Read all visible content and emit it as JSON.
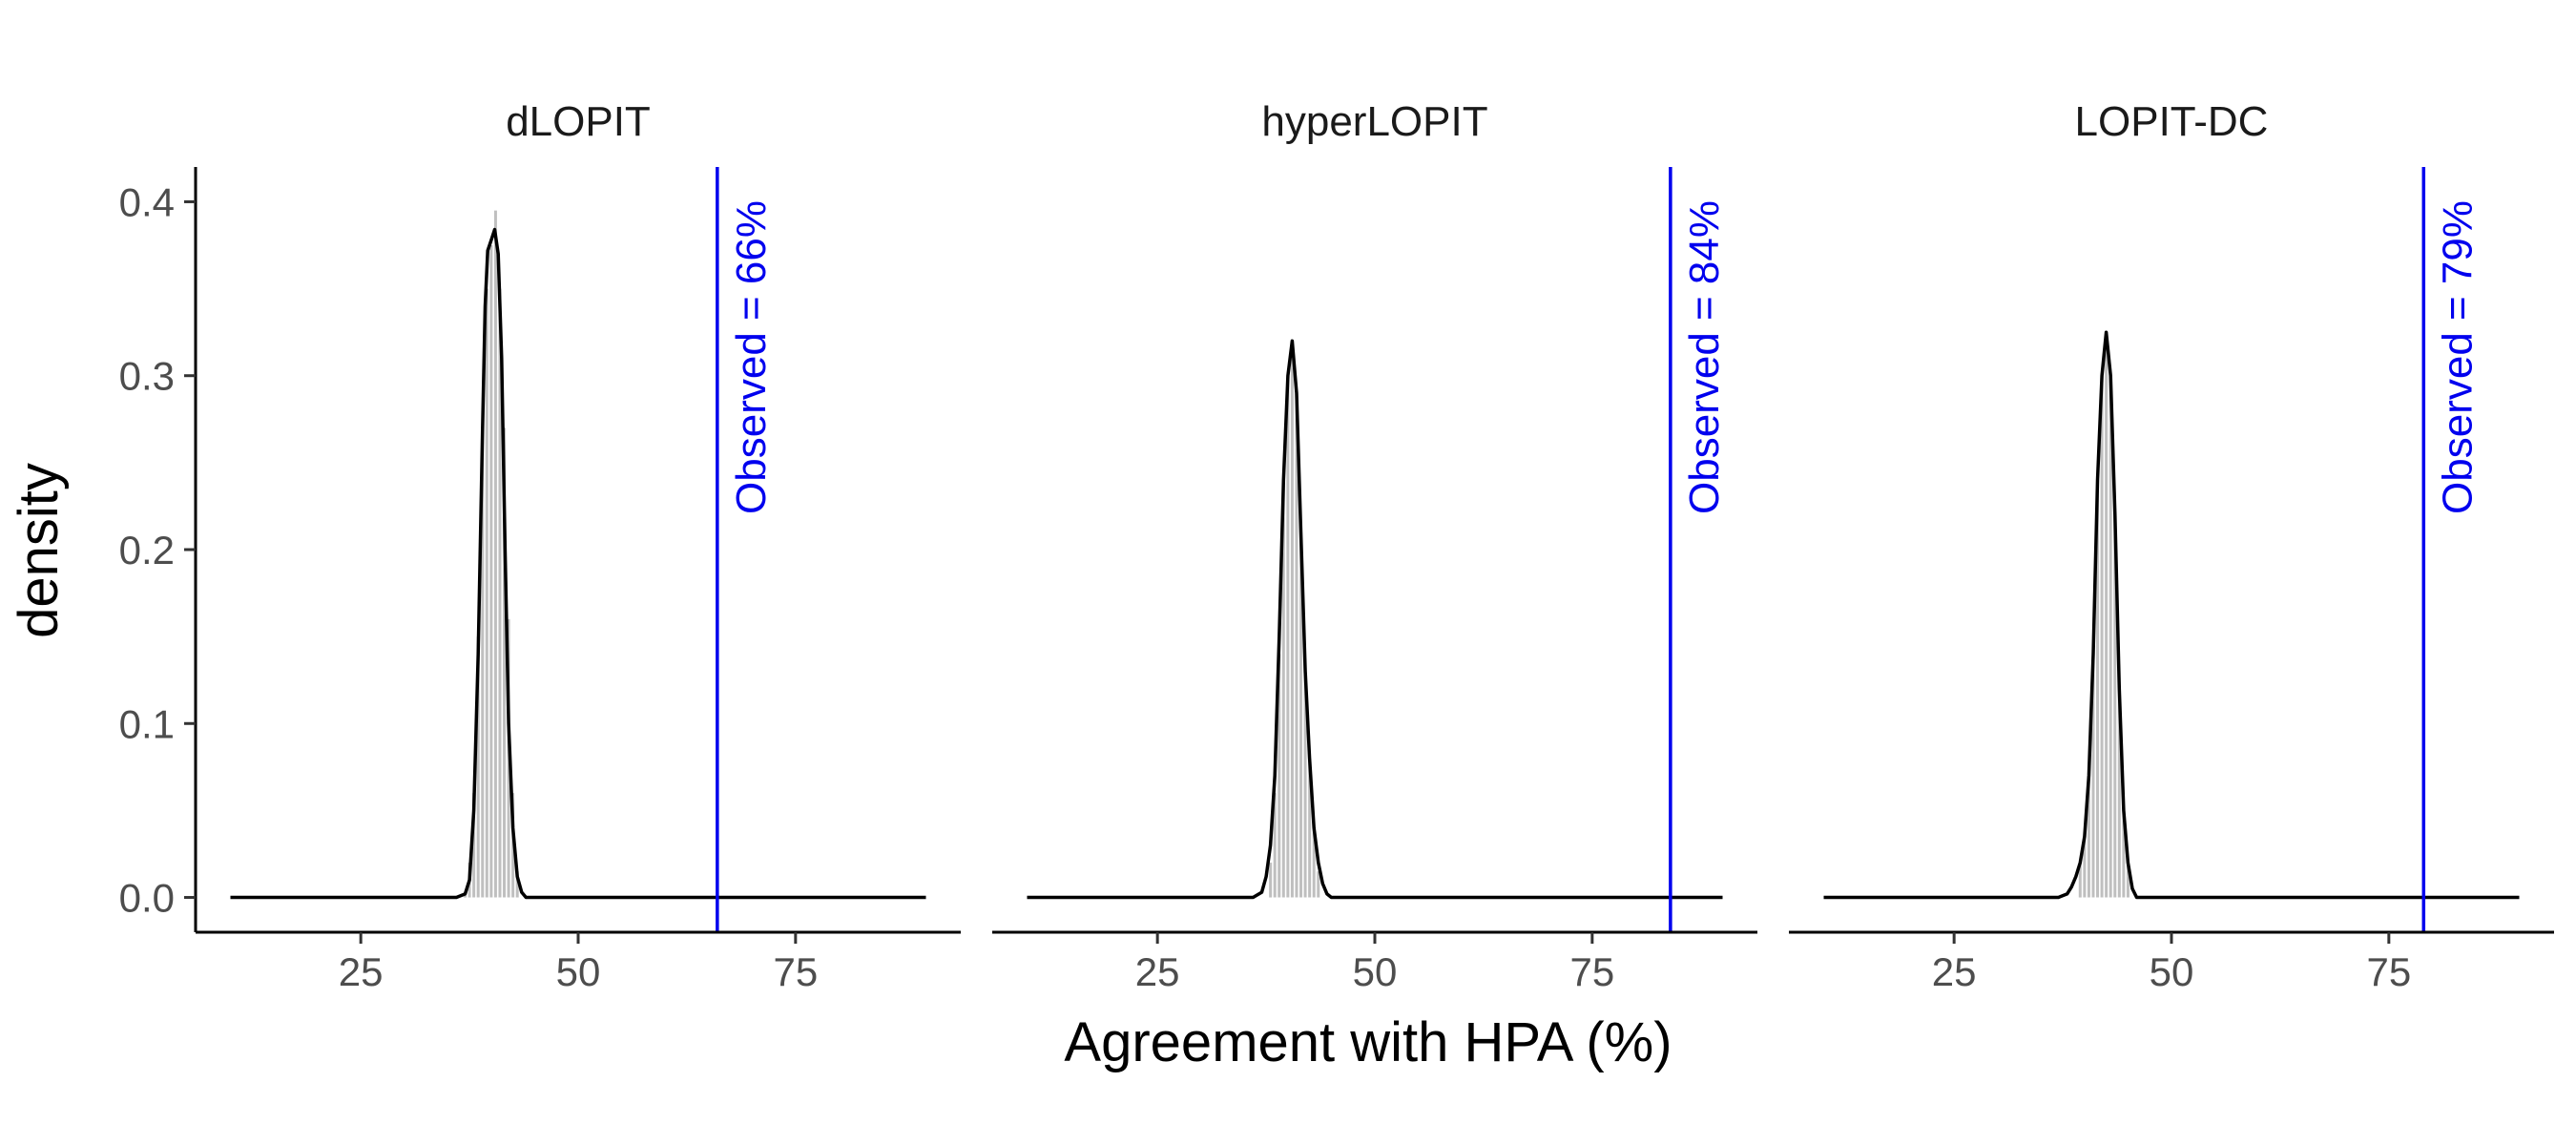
{
  "chart_data": {
    "type": "area",
    "xlabel": "Agreement with HPA (%)",
    "ylabel": "density",
    "xlim": [
      6,
      94
    ],
    "ylim": [
      -0.02,
      0.42
    ],
    "x_ticks": [
      "25",
      "50",
      "75"
    ],
    "y_ticks": [
      "0.0",
      "0.1",
      "0.2",
      "0.3",
      "0.4"
    ],
    "grid": false,
    "legend": "none",
    "colors": {
      "density_line": "#000000",
      "hist_fill": "#bfbfbf",
      "observed_line": "#0000ee"
    },
    "panels": [
      {
        "title": "dLOPIT",
        "observed_value": 66,
        "observed_label": "Observed = 66%",
        "density_x": [
          10,
          36,
          37,
          37.5,
          38,
          38.5,
          39,
          39.3,
          39.6,
          40.0,
          40.4,
          40.8,
          41.2,
          41.6,
          42.0,
          42.5,
          43,
          43.5,
          44,
          90
        ],
        "density_y": [
          0,
          0,
          0.002,
          0.01,
          0.05,
          0.14,
          0.27,
          0.34,
          0.372,
          0.378,
          0.384,
          0.37,
          0.31,
          0.2,
          0.1,
          0.04,
          0.012,
          0.003,
          0,
          0
        ],
        "hist_x": [
          37,
          37.5,
          38,
          38.5,
          39,
          39.5,
          40,
          40.5,
          41,
          41.5,
          42,
          42.5,
          43
        ],
        "hist_y": [
          0.003,
          0.02,
          0.06,
          0.15,
          0.27,
          0.35,
          0.375,
          0.395,
          0.35,
          0.27,
          0.16,
          0.06,
          0.015
        ]
      },
      {
        "title": "hyperLOPIT",
        "observed_value": 84,
        "observed_label": "Observed = 84%",
        "density_x": [
          10,
          36,
          37,
          37.5,
          38,
          38.5,
          39,
          39.5,
          40,
          40.5,
          41,
          41.5,
          42,
          42.5,
          43,
          43.5,
          44,
          44.5,
          45,
          90
        ],
        "density_y": [
          0,
          0,
          0.003,
          0.012,
          0.03,
          0.07,
          0.15,
          0.24,
          0.3,
          0.32,
          0.29,
          0.21,
          0.13,
          0.08,
          0.04,
          0.02,
          0.008,
          0.002,
          0,
          0
        ],
        "hist_x": [
          38,
          38.5,
          39,
          39.5,
          40,
          40.5,
          41,
          41.5,
          42,
          42.5,
          43,
          43.5
        ],
        "hist_y": [
          0.02,
          0.06,
          0.14,
          0.24,
          0.3,
          0.32,
          0.29,
          0.21,
          0.13,
          0.08,
          0.04,
          0.015
        ]
      },
      {
        "title": "LOPIT-DC",
        "observed_value": 79,
        "observed_label": "Observed = 79%",
        "density_x": [
          10,
          37,
          38,
          38.5,
          39,
          39.5,
          40,
          40.5,
          41,
          41.5,
          42,
          42.5,
          43,
          43.5,
          44,
          44.5,
          45,
          45.5,
          46,
          90
        ],
        "density_y": [
          0,
          0,
          0.002,
          0.006,
          0.012,
          0.02,
          0.035,
          0.07,
          0.14,
          0.24,
          0.3,
          0.325,
          0.3,
          0.22,
          0.12,
          0.05,
          0.02,
          0.005,
          0,
          0
        ],
        "hist_x": [
          39.5,
          40,
          40.5,
          41,
          41.5,
          42,
          42.5,
          43,
          43.5,
          44,
          44.5,
          45
        ],
        "hist_y": [
          0.02,
          0.035,
          0.07,
          0.14,
          0.24,
          0.3,
          0.325,
          0.3,
          0.22,
          0.12,
          0.05,
          0.02
        ]
      }
    ]
  }
}
